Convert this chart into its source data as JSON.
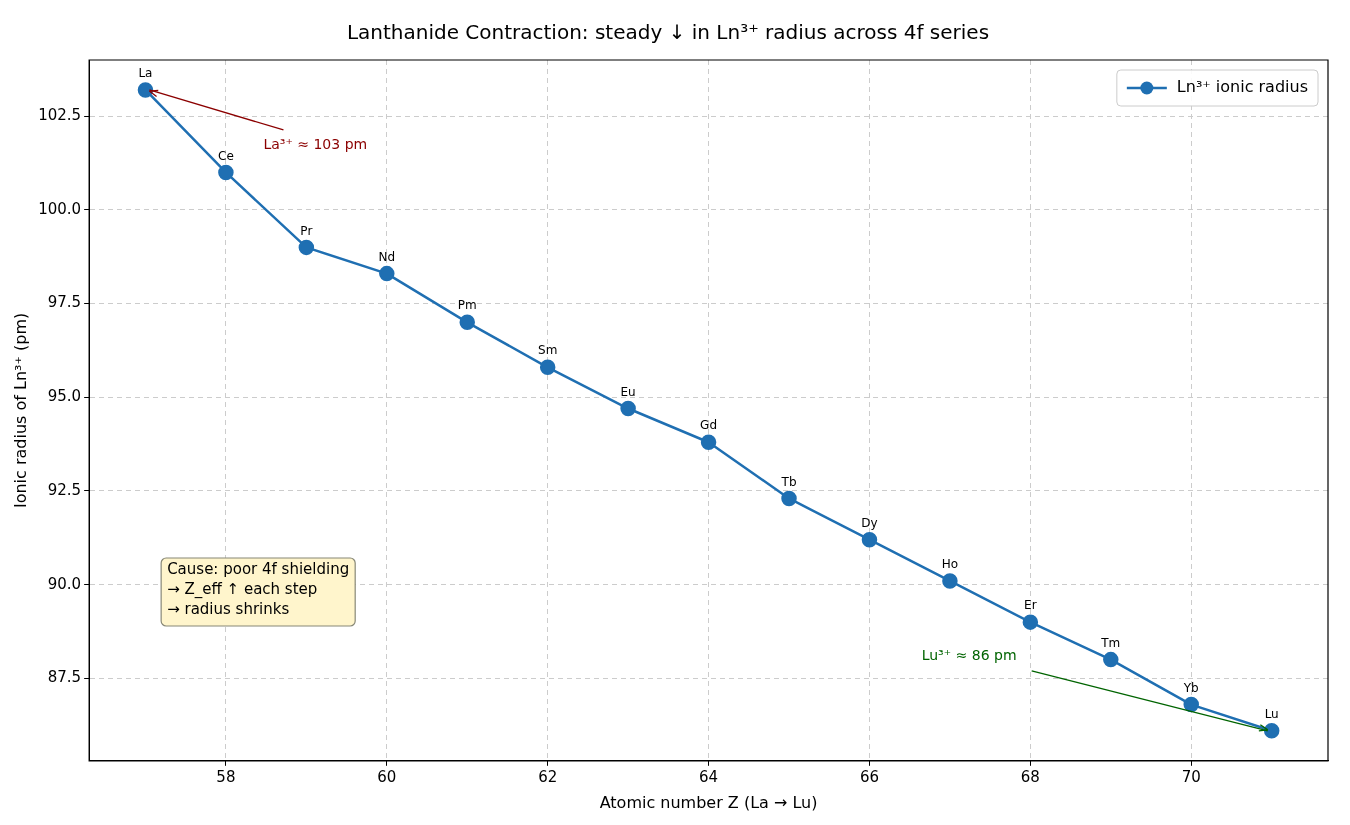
{
  "chart_data": {
    "type": "line",
    "title": "Lanthanide Contraction: steady ↓ in Ln³⁺ radius across 4f series",
    "xlabel": "Atomic number Z (La → Lu)",
    "ylabel": "Ionic radius of Ln³⁺ (pm)",
    "x": [
      57,
      58,
      59,
      60,
      61,
      62,
      63,
      64,
      65,
      66,
      67,
      68,
      69,
      70,
      71
    ],
    "series": [
      {
        "name": "Ln³⁺ ionic radius",
        "color": "#1f6fb2",
        "values": [
          103.2,
          101.0,
          99.0,
          98.3,
          97.0,
          95.8,
          94.7,
          93.8,
          92.3,
          91.2,
          90.1,
          89.0,
          88.0,
          86.8,
          86.1
        ],
        "value_labels": [
          "La",
          "Ce",
          "Pr",
          "Nd",
          "Pm",
          "Sm",
          "Eu",
          "Gd",
          "Tb",
          "Dy",
          "Ho",
          "Er",
          "Tm",
          "Yb",
          "Lu"
        ]
      }
    ],
    "xlim": [
      56.3,
      71.7
    ],
    "xticks": [
      58,
      60,
      62,
      64,
      66,
      68,
      70
    ],
    "ylim": [
      85.3,
      104.0
    ],
    "yticks": [
      87.5,
      {
        "value": 90,
        "label": "90.0"
      },
      92.5,
      {
        "value": 95,
        "label": "95.0"
      },
      97.5,
      {
        "value": 100,
        "label": "100.0"
      },
      102.5
    ],
    "annotations": [
      {
        "text": "La³⁺ ≈ 103 pm",
        "x": 57,
        "y": 103.2
      },
      {
        "text": "Lu³⁺ ≈ 86 pm",
        "x": 71,
        "y": 86.1
      },
      "Cause: poor 4f shielding\n→ Z_eff ↑ each step\n→ radius shrinks"
    ],
    "grid": true,
    "legend": "top right",
    "marker": "circle",
    "line_style": "solid"
  }
}
